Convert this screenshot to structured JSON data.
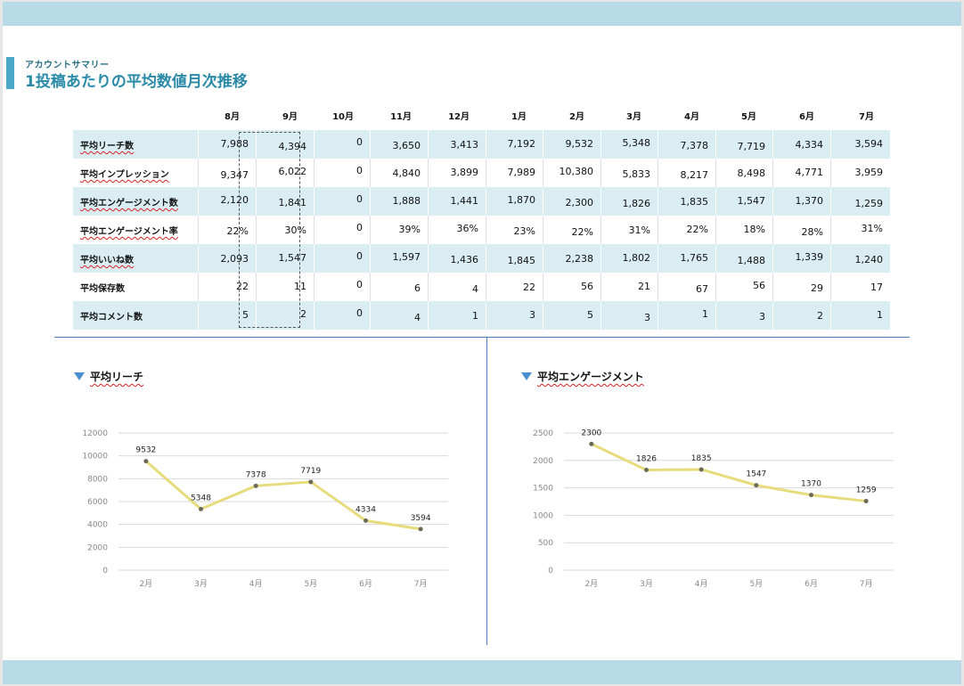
{
  "header": {
    "subtitle": "アカウントサマリー",
    "title": "1投稿あたりの平均数値月次推移"
  },
  "table": {
    "months": [
      "8月",
      "9月",
      "10月",
      "11月",
      "12月",
      "1月",
      "2月",
      "3月",
      "4月",
      "5月",
      "6月",
      "7月"
    ],
    "rows": [
      {
        "label": "平均リーチ数",
        "values": [
          "7,988",
          "4,394",
          "0",
          "3,650",
          "3,413",
          "7,192",
          "9,532",
          "5,348",
          "7,378",
          "7,719",
          "4,334",
          "3,594"
        ]
      },
      {
        "label": "平均インプレッション",
        "values": [
          "9,347",
          "6,022",
          "0",
          "4,840",
          "3,899",
          "7,989",
          "10,380",
          "5,833",
          "8,217",
          "8,498",
          "4,771",
          "3,959"
        ]
      },
      {
        "label": "平均エンゲージメント数",
        "values": [
          "2,120",
          "1,841",
          "0",
          "1,888",
          "1,441",
          "1,870",
          "2,300",
          "1,826",
          "1,835",
          "1,547",
          "1,370",
          "1,259"
        ]
      },
      {
        "label": "平均エンゲージメント率",
        "values": [
          "22%",
          "30%",
          "0",
          "39%",
          "36%",
          "23%",
          "22%",
          "31%",
          "22%",
          "18%",
          "28%",
          "31%"
        ]
      },
      {
        "label": "平均いいね数",
        "values": [
          "2,093",
          "1,547",
          "0",
          "1,597",
          "1,436",
          "1,845",
          "2,238",
          "1,802",
          "1,765",
          "1,488",
          "1,339",
          "1,240"
        ]
      },
      {
        "label": "平均保存数",
        "values": [
          "22",
          "11",
          "0",
          "6",
          "4",
          "22",
          "56",
          "21",
          "67",
          "56",
          "29",
          "17"
        ]
      },
      {
        "label": "平均コメント数",
        "values": [
          "5",
          "2",
          "0",
          "4",
          "1",
          "3",
          "5",
          "3",
          "1",
          "3",
          "2",
          "1"
        ]
      }
    ]
  },
  "chart_data": [
    {
      "type": "line",
      "title": "平均リーチ",
      "categories": [
        "2月",
        "3月",
        "4月",
        "5月",
        "6月",
        "7月"
      ],
      "values": [
        9532,
        5348,
        7378,
        7719,
        4334,
        3594
      ],
      "yticks": [
        0,
        2000,
        4000,
        6000,
        8000,
        10000,
        12000
      ],
      "ylim": [
        0,
        12000
      ],
      "grid": true,
      "line_color": "#e6dc7c",
      "marker_color": "#6b6b55"
    },
    {
      "type": "line",
      "title": "平均エンゲージメント",
      "categories": [
        "2月",
        "3月",
        "4月",
        "5月",
        "6月",
        "7月"
      ],
      "values": [
        2300,
        1826,
        1835,
        1547,
        1370,
        1259
      ],
      "yticks": [
        0,
        500,
        1000,
        1500,
        2000,
        2500
      ],
      "ylim": [
        0,
        2500
      ],
      "grid": true,
      "line_color": "#e6dc7c",
      "marker_color": "#6b6b55"
    }
  ]
}
